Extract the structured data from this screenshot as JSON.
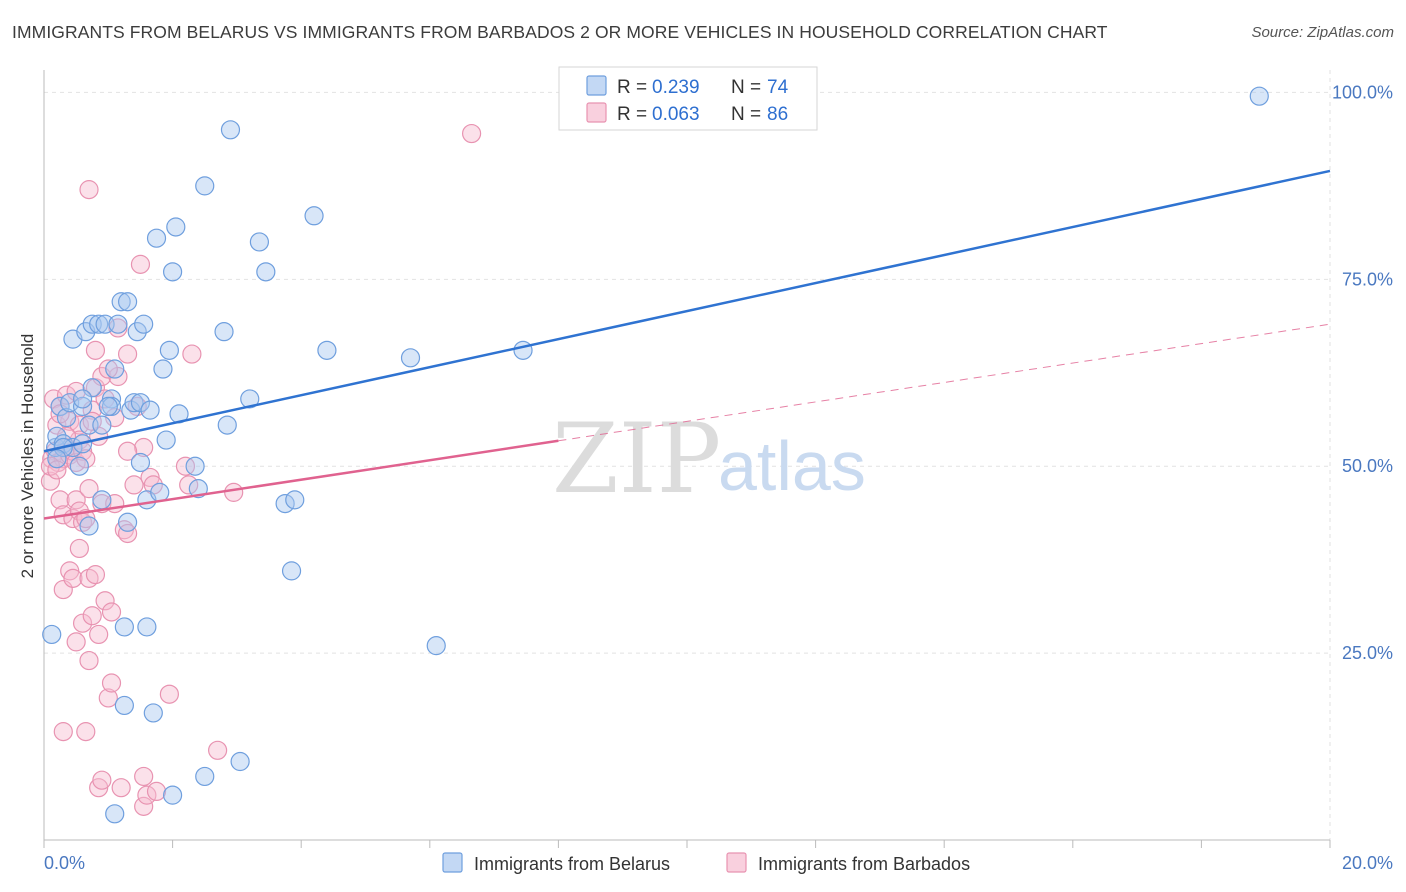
{
  "title": "IMMIGRANTS FROM BELARUS VS IMMIGRANTS FROM BARBADOS 2 OR MORE VEHICLES IN HOUSEHOLD CORRELATION CHART",
  "source": "Source: ZipAtlas.com",
  "watermark": {
    "zip": "ZIP",
    "atlas": "atlas"
  },
  "colors": {
    "belarus_fill": "#a9c8f0",
    "belarus_stroke": "#6f9fde",
    "belarus_line": "#2f73d1",
    "barbados_fill": "#f7bcd0",
    "barbados_stroke": "#e893b1",
    "barbados_line": "#e0628f",
    "grid": "#e2e2e2",
    "tick_text": "#4a78c0"
  },
  "legend": {
    "rows": [
      {
        "r_label": "R =",
        "r_value": "0.239",
        "n_label": "N =",
        "n_value": "74"
      },
      {
        "r_label": "R =",
        "r_value": "0.063",
        "n_label": "N =",
        "n_value": "86"
      }
    ]
  },
  "chart_data": {
    "type": "scatter",
    "title": "IMMIGRANTS FROM BELARUS VS IMMIGRANTS FROM BARBADOS 2 OR MORE VEHICLES IN HOUSEHOLD CORRELATION CHART",
    "xlabel": "",
    "ylabel": "2 or more Vehicles in Household",
    "xlim": [
      0,
      20
    ],
    "ylim": [
      0,
      103
    ],
    "x_tick_labels": [
      "0.0%",
      "20.0%"
    ],
    "y_ticks": [
      25,
      50,
      75,
      100
    ],
    "y_tick_labels": [
      "25.0%",
      "50.0%",
      "75.0%",
      "100.0%"
    ],
    "legend_position": "top-center",
    "series": [
      {
        "name": "Immigrants from Belarus",
        "R": 0.239,
        "N": 74,
        "trend": {
          "x": [
            0,
            20
          ],
          "y": [
            52.0,
            89.5
          ],
          "dashed_from_x": null
        },
        "points": [
          [
            0.12,
            27.5
          ],
          [
            0.18,
            52.5
          ],
          [
            0.2,
            54
          ],
          [
            0.25,
            58
          ],
          [
            0.3,
            53
          ],
          [
            0.35,
            56.5
          ],
          [
            0.4,
            58.5
          ],
          [
            0.45,
            52.5
          ],
          [
            0.45,
            67
          ],
          [
            0.55,
            50
          ],
          [
            0.6,
            58
          ],
          [
            0.65,
            68
          ],
          [
            0.7,
            55.5
          ],
          [
            0.7,
            42
          ],
          [
            0.75,
            69
          ],
          [
            0.75,
            60.5
          ],
          [
            0.85,
            69
          ],
          [
            0.9,
            55.5
          ],
          [
            0.9,
            45.5
          ],
          [
            0.95,
            69
          ],
          [
            1.05,
            59
          ],
          [
            1.05,
            58
          ],
          [
            1.1,
            63
          ],
          [
            1.15,
            69
          ],
          [
            1.2,
            72
          ],
          [
            1.25,
            28.5
          ],
          [
            1.25,
            18
          ],
          [
            1.3,
            42.5
          ],
          [
            1.35,
            57.5
          ],
          [
            1.4,
            58.5
          ],
          [
            1.45,
            68
          ],
          [
            1.5,
            58.5
          ],
          [
            1.55,
            69
          ],
          [
            1.6,
            45.5
          ],
          [
            1.6,
            28.5
          ],
          [
            1.65,
            57.5
          ],
          [
            1.7,
            17
          ],
          [
            1.75,
            80.5
          ],
          [
            1.8,
            46.5
          ],
          [
            1.85,
            63
          ],
          [
            1.9,
            53.5
          ],
          [
            1.95,
            65.5
          ],
          [
            2.0,
            76
          ],
          [
            2.05,
            82
          ],
          [
            2.1,
            57
          ],
          [
            2.35,
            50
          ],
          [
            2.4,
            47
          ],
          [
            2.5,
            87.5
          ],
          [
            2.5,
            8.5
          ],
          [
            2.8,
            68
          ],
          [
            2.85,
            55.5
          ],
          [
            2.9,
            95
          ],
          [
            3.05,
            10.5
          ],
          [
            3.2,
            59
          ],
          [
            3.35,
            80
          ],
          [
            3.45,
            76
          ],
          [
            3.75,
            45
          ],
          [
            3.85,
            36
          ],
          [
            3.9,
            45.5
          ],
          [
            4.2,
            83.5
          ],
          [
            4.4,
            65.5
          ],
          [
            5.7,
            64.5
          ],
          [
            6.1,
            26
          ],
          [
            7.45,
            65.5
          ],
          [
            1.1,
            3.5
          ],
          [
            2.0,
            6
          ],
          [
            1.3,
            72
          ],
          [
            0.6,
            59
          ],
          [
            0.3,
            52.5
          ],
          [
            1.0,
            58
          ],
          [
            1.5,
            50.5
          ],
          [
            18.9,
            99.5
          ],
          [
            0.2,
            51
          ],
          [
            0.6,
            53
          ]
        ]
      },
      {
        "name": "Immigrants from Barbados",
        "R": 0.063,
        "N": 86,
        "trend": {
          "x": [
            0,
            20
          ],
          "y": [
            43.0,
            69.0
          ],
          "dashed_from_x": 8.0
        },
        "points": [
          [
            0.1,
            48
          ],
          [
            0.12,
            51
          ],
          [
            0.15,
            59
          ],
          [
            0.18,
            52
          ],
          [
            0.2,
            55.5
          ],
          [
            0.22,
            50.5
          ],
          [
            0.25,
            58
          ],
          [
            0.25,
            45.5
          ],
          [
            0.3,
            51
          ],
          [
            0.3,
            43.5
          ],
          [
            0.3,
            14.5
          ],
          [
            0.3,
            33.5
          ],
          [
            0.35,
            59.5
          ],
          [
            0.35,
            52.5
          ],
          [
            0.4,
            51.5
          ],
          [
            0.4,
            56
          ],
          [
            0.4,
            36
          ],
          [
            0.45,
            52
          ],
          [
            0.45,
            35
          ],
          [
            0.45,
            43
          ],
          [
            0.5,
            50.5
          ],
          [
            0.5,
            45.5
          ],
          [
            0.5,
            26.5
          ],
          [
            0.55,
            55.5
          ],
          [
            0.55,
            53.5
          ],
          [
            0.55,
            44
          ],
          [
            0.55,
            39
          ],
          [
            0.6,
            52
          ],
          [
            0.6,
            42.5
          ],
          [
            0.6,
            29
          ],
          [
            0.65,
            51
          ],
          [
            0.65,
            14.5
          ],
          [
            0.7,
            87
          ],
          [
            0.7,
            47
          ],
          [
            0.7,
            35
          ],
          [
            0.7,
            24
          ],
          [
            0.75,
            57.5
          ],
          [
            0.75,
            30
          ],
          [
            0.8,
            65.5
          ],
          [
            0.8,
            60.5
          ],
          [
            0.8,
            35.5
          ],
          [
            0.85,
            54
          ],
          [
            0.85,
            27.5
          ],
          [
            0.85,
            7
          ],
          [
            0.9,
            62
          ],
          [
            0.9,
            45
          ],
          [
            0.9,
            8
          ],
          [
            0.95,
            59
          ],
          [
            0.95,
            32
          ],
          [
            1.0,
            19
          ],
          [
            1.05,
            30.5
          ],
          [
            1.05,
            21
          ],
          [
            1.1,
            56.5
          ],
          [
            1.1,
            45
          ],
          [
            1.15,
            62
          ],
          [
            1.15,
            68.5
          ],
          [
            1.2,
            7
          ],
          [
            1.25,
            41.5
          ],
          [
            1.3,
            65
          ],
          [
            1.3,
            41
          ],
          [
            1.4,
            47.5
          ],
          [
            1.45,
            58
          ],
          [
            1.5,
            77
          ],
          [
            1.55,
            52.5
          ],
          [
            1.55,
            4.5
          ],
          [
            1.55,
            8.5
          ],
          [
            1.6,
            6
          ],
          [
            1.65,
            48.5
          ],
          [
            1.7,
            47.5
          ],
          [
            1.75,
            6.5
          ],
          [
            1.95,
            19.5
          ],
          [
            2.2,
            50
          ],
          [
            2.25,
            47.5
          ],
          [
            2.3,
            65
          ],
          [
            2.7,
            12
          ],
          [
            2.95,
            46.5
          ],
          [
            6.65,
            94.5
          ],
          [
            0.1,
            50
          ],
          [
            0.2,
            49.5
          ],
          [
            0.35,
            54
          ],
          [
            0.5,
            60
          ],
          [
            0.65,
            43
          ],
          [
            0.75,
            56
          ],
          [
            1.0,
            63
          ],
          [
            1.3,
            52
          ],
          [
            0.25,
            57
          ]
        ]
      }
    ]
  }
}
